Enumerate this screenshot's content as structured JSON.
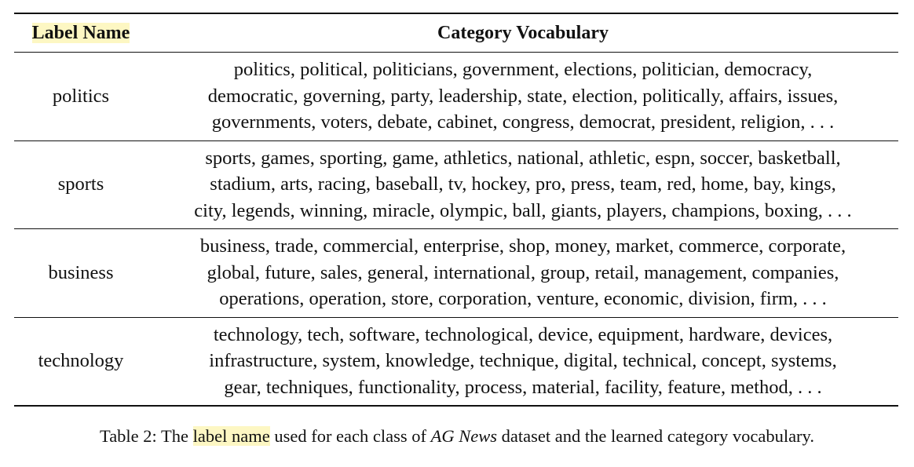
{
  "table": {
    "header": {
      "label_col": "Label Name",
      "vocab_col": "Category Vocabulary"
    },
    "rows": [
      {
        "label": "politics",
        "vocab_lines": [
          "politics, political, politicians, government, elections, politician, democracy,",
          "democratic, governing, party, leadership, state, election, politically, affairs, issues,",
          "governments, voters, debate, cabinet, congress, democrat, president, religion, . . ."
        ]
      },
      {
        "label": "sports",
        "vocab_lines": [
          "sports, games, sporting, game, athletics, national, athletic, espn, soccer, basketball,",
          "stadium, arts, racing, baseball, tv, hockey, pro, press, team, red, home, bay, kings,",
          "city, legends, winning, miracle, olympic, ball, giants, players, champions, boxing, . . ."
        ]
      },
      {
        "label": "business",
        "vocab_lines": [
          "business, trade, commercial, enterprise, shop, money, market, commerce, corporate,",
          "global, future, sales, general, international, group, retail, management, companies,",
          "operations, operation, store, corporation, venture, economic, division, firm, . . ."
        ]
      },
      {
        "label": "technology",
        "vocab_lines": [
          "technology, tech, software, technological, device, equipment, hardware, devices,",
          "infrastructure, system, knowledge, technique, digital, technical, concept, systems,",
          "gear, techniques, functionality, process, material, facility, feature, method, . . ."
        ]
      }
    ]
  },
  "caption": {
    "prefix": "Table 2: The ",
    "highlight": "label name",
    "middle": " used for each class of ",
    "dataset": "AG News",
    "suffix": " dataset and the learned category vocabulary."
  },
  "colors": {
    "highlight": "#fdf7c3",
    "text": "#111111"
  }
}
